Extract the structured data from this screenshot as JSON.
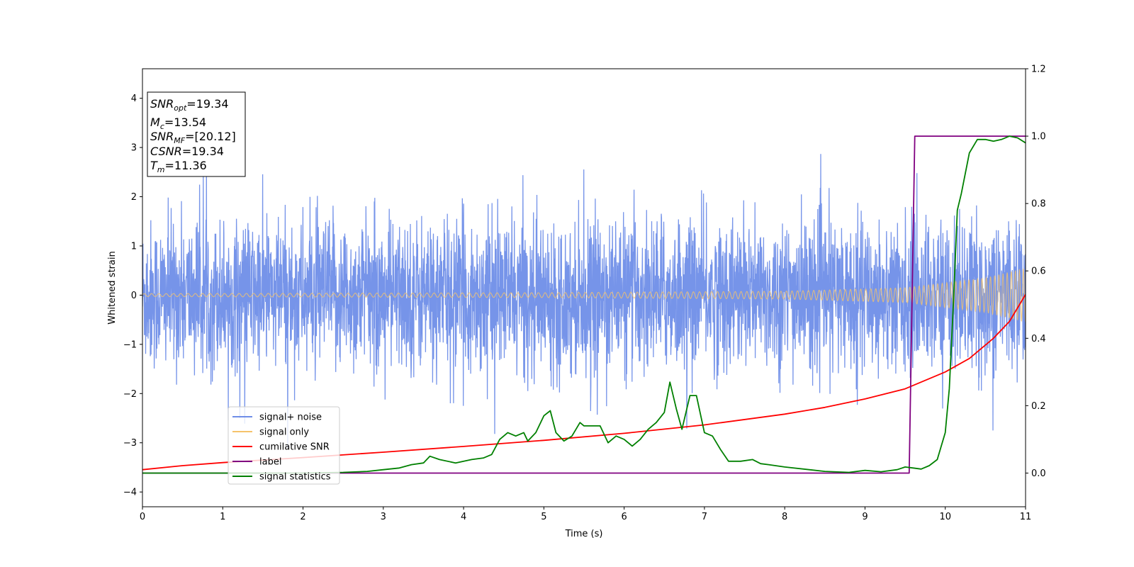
{
  "chart_data": {
    "type": "line",
    "xlabel": "Time (s)",
    "ylabel": "Whitened strain",
    "xlim": [
      0,
      11
    ],
    "ylim": [
      -4.3,
      4.6
    ],
    "y2lim": [
      -0.1,
      1.2
    ],
    "x_ticks": [
      "0",
      "1",
      "2",
      "3",
      "4",
      "5",
      "6",
      "7",
      "8",
      "9",
      "10",
      "11"
    ],
    "y_ticks": [
      "−4",
      "−3",
      "−2",
      "−1",
      "0",
      "1",
      "2",
      "3",
      "4"
    ],
    "y2_ticks": [
      "0.0",
      "0.2",
      "0.4",
      "0.6",
      "0.8",
      "1.0",
      "1.2"
    ],
    "info_box": {
      "snr_opt": {
        "sym": "SNR",
        "sub": "opt",
        "value": "=19.34"
      },
      "mc": {
        "sym": "M",
        "sub": "c",
        "value": "=13.54"
      },
      "snr_mf": {
        "sym": "SNR",
        "sub": "MF",
        "value": "=[20.12]"
      },
      "csnr": {
        "sym": "CSNR",
        "value": "=19.34"
      },
      "tm": {
        "sym": "T",
        "sub": "m",
        "value": "=11.36"
      }
    },
    "legend": {
      "position": "lower left",
      "entries": [
        {
          "label": "signal+ noise",
          "color": "#6f8ee8"
        },
        {
          "label": "signal only",
          "color": "#f5c36b"
        },
        {
          "label": "cumilative SNR",
          "color": "#ff0000"
        },
        {
          "label": "label",
          "color": "#800080"
        },
        {
          "label": "signal statistics",
          "color": "#008000"
        }
      ]
    },
    "series": [
      {
        "name": "signal+ noise",
        "axis": "left",
        "style": "noise",
        "color": "#6f8ee8",
        "amplitude_sd": 0.75,
        "peak_range": [
          -3.1,
          3.25
        ]
      },
      {
        "name": "signal only",
        "axis": "left",
        "style": "chirp",
        "color": "#f5c36b",
        "envelope": [
          [
            0,
            0.03
          ],
          [
            5,
            0.05
          ],
          [
            8,
            0.08
          ],
          [
            9.5,
            0.15
          ],
          [
            10.5,
            0.35
          ],
          [
            11,
            0.55
          ]
        ]
      },
      {
        "name": "cumilative SNR",
        "axis": "right",
        "color": "#ff0000",
        "x": [
          0,
          0.5,
          1,
          2,
          3,
          4,
          5,
          6,
          7,
          8,
          8.5,
          9,
          9.5,
          10,
          10.3,
          10.6,
          10.8,
          11
        ],
        "y": [
          0.01,
          0.022,
          0.031,
          0.046,
          0.062,
          0.079,
          0.097,
          0.118,
          0.143,
          0.175,
          0.195,
          0.22,
          0.25,
          0.3,
          0.34,
          0.4,
          0.45,
          0.53
        ]
      },
      {
        "name": "label",
        "axis": "right",
        "color": "#800080",
        "x": [
          0,
          9.55,
          9.62,
          11
        ],
        "y": [
          0,
          0,
          1,
          1
        ]
      },
      {
        "name": "signal statistics",
        "axis": "right",
        "color": "#008000",
        "x": [
          0,
          2.0,
          2.5,
          2.8,
          3.0,
          3.2,
          3.35,
          3.5,
          3.58,
          3.7,
          3.9,
          4.1,
          4.25,
          4.35,
          4.45,
          4.55,
          4.65,
          4.75,
          4.8,
          4.9,
          5.0,
          5.08,
          5.15,
          5.25,
          5.35,
          5.45,
          5.5,
          5.7,
          5.8,
          5.9,
          6.0,
          6.1,
          6.2,
          6.3,
          6.4,
          6.5,
          6.57,
          6.65,
          6.72,
          6.82,
          6.9,
          7.0,
          7.1,
          7.2,
          7.3,
          7.45,
          7.6,
          7.7,
          7.8,
          8.0,
          8.5,
          8.8,
          9.0,
          9.2,
          9.4,
          9.5,
          9.6,
          9.7,
          9.8,
          9.9,
          10.0,
          10.05,
          10.1,
          10.15,
          10.2,
          10.3,
          10.4,
          10.5,
          10.6,
          10.7,
          10.8,
          10.9,
          11.0
        ],
        "y": [
          0,
          0,
          0.002,
          0.005,
          0.01,
          0.015,
          0.025,
          0.03,
          0.05,
          0.04,
          0.03,
          0.04,
          0.045,
          0.055,
          0.1,
          0.12,
          0.11,
          0.12,
          0.095,
          0.12,
          0.17,
          0.185,
          0.12,
          0.095,
          0.11,
          0.15,
          0.14,
          0.14,
          0.09,
          0.11,
          0.1,
          0.08,
          0.1,
          0.13,
          0.15,
          0.18,
          0.27,
          0.19,
          0.13,
          0.23,
          0.23,
          0.12,
          0.11,
          0.07,
          0.035,
          0.035,
          0.04,
          0.028,
          0.025,
          0.018,
          0.005,
          0.002,
          0.008,
          0.004,
          0.01,
          0.018,
          0.015,
          0.012,
          0.022,
          0.04,
          0.12,
          0.25,
          0.5,
          0.78,
          0.83,
          0.95,
          0.99,
          0.99,
          0.985,
          0.99,
          1.0,
          0.995,
          0.98
        ]
      }
    ]
  }
}
